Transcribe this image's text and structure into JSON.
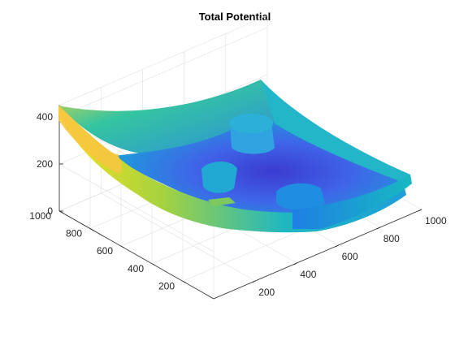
{
  "chart_data": {
    "type": "surface",
    "title": "Total Potential",
    "xlabel": "",
    "ylabel": "",
    "zlabel": "",
    "grid": true,
    "colormap": "parula",
    "xlim": [
      0,
      1000
    ],
    "ylim": [
      0,
      1000
    ],
    "zlim": [
      0,
      450
    ],
    "x_ticks": [
      200,
      400,
      600,
      800,
      1000
    ],
    "y_ticks": [
      200,
      400,
      600,
      800,
      1000
    ],
    "z_ticks": [
      0,
      200,
      400
    ],
    "surface": {
      "x": [
        0,
        250,
        500,
        750,
        1000
      ],
      "y": [
        0,
        250,
        500,
        750,
        1000
      ],
      "z": [
        [
          160,
          120,
          110,
          120,
          170
        ],
        [
          240,
          40,
          60,
          40,
          150
        ],
        [
          320,
          100,
          60,
          70,
          140
        ],
        [
          380,
          180,
          120,
          110,
          160
        ],
        [
          420,
          320,
          270,
          250,
          260
        ]
      ]
    },
    "colors": {
      "low": "#352a87",
      "mid_low": "#2f6fe0",
      "mid": "#18b8c2",
      "mid_high": "#7cc85f",
      "high": "#f8e21f"
    }
  }
}
